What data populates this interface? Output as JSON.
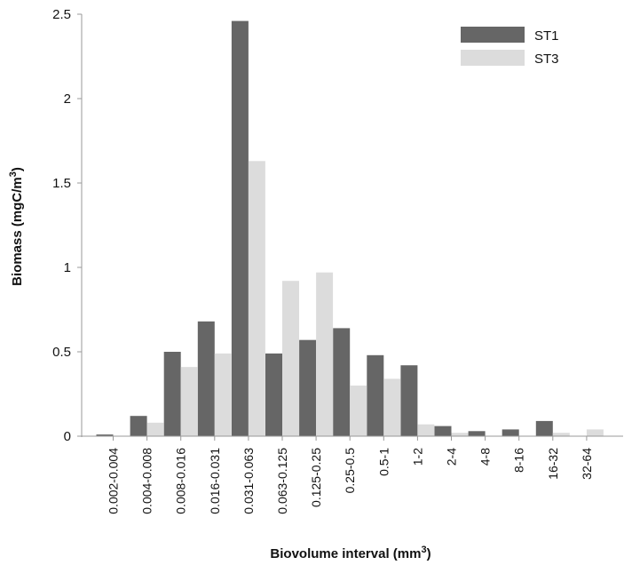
{
  "chart_data": {
    "type": "bar",
    "xlabel": "Biovolume interval (mm",
    "xlabel_sup": "3",
    "xlabel_end": ")",
    "ylabel": "Biomass (mgC/m",
    "ylabel_sup": "3",
    "ylabel_end": ")",
    "ylim": [
      0,
      2.5
    ],
    "yticks": [
      "0",
      "0.5",
      "1",
      "1.5",
      "2",
      "2.5"
    ],
    "legend_position": "top-right",
    "grid": false,
    "categories": [
      "0.002-0.004",
      "0.004-0.008",
      "0.008-0.016",
      "0.016-0.031",
      "0.031-0.063",
      "0.063-0.125",
      "0.125-0.25",
      "0.25-0.5",
      "0.5-1",
      "1-2",
      "2-4",
      "4-8",
      "8-16",
      "16-32",
      "32-64"
    ],
    "series": [
      {
        "name": "ST1",
        "color": "#666666",
        "values": [
          0.01,
          0.12,
          0.5,
          0.68,
          2.46,
          0.49,
          0.57,
          0.64,
          0.48,
          0.42,
          0.06,
          0.03,
          0.04,
          0.09,
          0.0
        ]
      },
      {
        "name": "ST3",
        "color": "#dcdcdc",
        "values": [
          0.0,
          0.08,
          0.41,
          0.49,
          1.63,
          0.92,
          0.97,
          0.3,
          0.34,
          0.07,
          0.02,
          0.0,
          0.0,
          0.02,
          0.04
        ]
      }
    ]
  }
}
